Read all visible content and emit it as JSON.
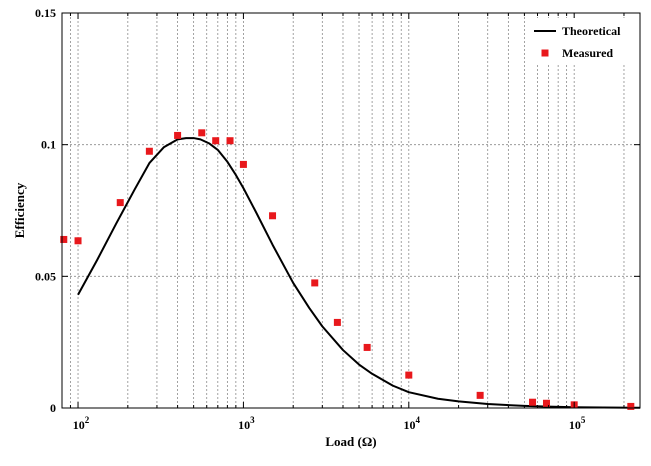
{
  "chart_data": {
    "type": "line",
    "xlabel": "Load (Ω)",
    "ylabel": "Efficiency",
    "x_scale": "log",
    "xlim": [
      80,
      250000
    ],
    "ylim": [
      0,
      0.15
    ],
    "y_ticks": [
      "0",
      "0.05",
      "0.1",
      "0.15"
    ],
    "x_ticks": [
      {
        "value": 100,
        "base": "10",
        "exp": "2"
      },
      {
        "value": 1000,
        "base": "10",
        "exp": "3"
      },
      {
        "value": 10000,
        "base": "10",
        "exp": "4"
      },
      {
        "value": 100000,
        "base": "10",
        "exp": "5"
      }
    ],
    "grid": true,
    "legend_position": "top-right",
    "series": [
      {
        "name": "Theoretical",
        "kind": "line",
        "color": "#000000",
        "x": [
          100,
          130,
          170,
          220,
          270,
          330,
          400,
          450,
          500,
          550,
          620,
          700,
          800,
          900,
          1000,
          1200,
          1500,
          2000,
          2500,
          3000,
          4000,
          5000,
          6000,
          8000,
          10000,
          15000,
          20000,
          30000,
          50000,
          70000,
          100000,
          150000,
          250000
        ],
        "y": [
          0.043,
          0.056,
          0.07,
          0.083,
          0.093,
          0.099,
          0.102,
          0.1025,
          0.1025,
          0.102,
          0.1005,
          0.098,
          0.0935,
          0.0885,
          0.0835,
          0.074,
          0.062,
          0.0475,
          0.038,
          0.031,
          0.022,
          0.0165,
          0.013,
          0.0085,
          0.006,
          0.0035,
          0.0025,
          0.0015,
          0.0008,
          0.0005,
          0.0003,
          0.0002,
          0.0001
        ]
      },
      {
        "name": "Measured",
        "kind": "scatter",
        "color": "#e8181c",
        "x": [
          82,
          100,
          180,
          270,
          400,
          560,
          680,
          830,
          1000,
          1500,
          2700,
          3700,
          5600,
          10000,
          27000,
          56000,
          68000,
          100000,
          220000
        ],
        "y": [
          0.064,
          0.0635,
          0.078,
          0.0975,
          0.1035,
          0.1045,
          0.1015,
          0.1015,
          0.0925,
          0.073,
          0.0475,
          0.0325,
          0.023,
          0.0125,
          0.0048,
          0.0022,
          0.0018,
          0.0012,
          0.0006
        ]
      }
    ]
  }
}
